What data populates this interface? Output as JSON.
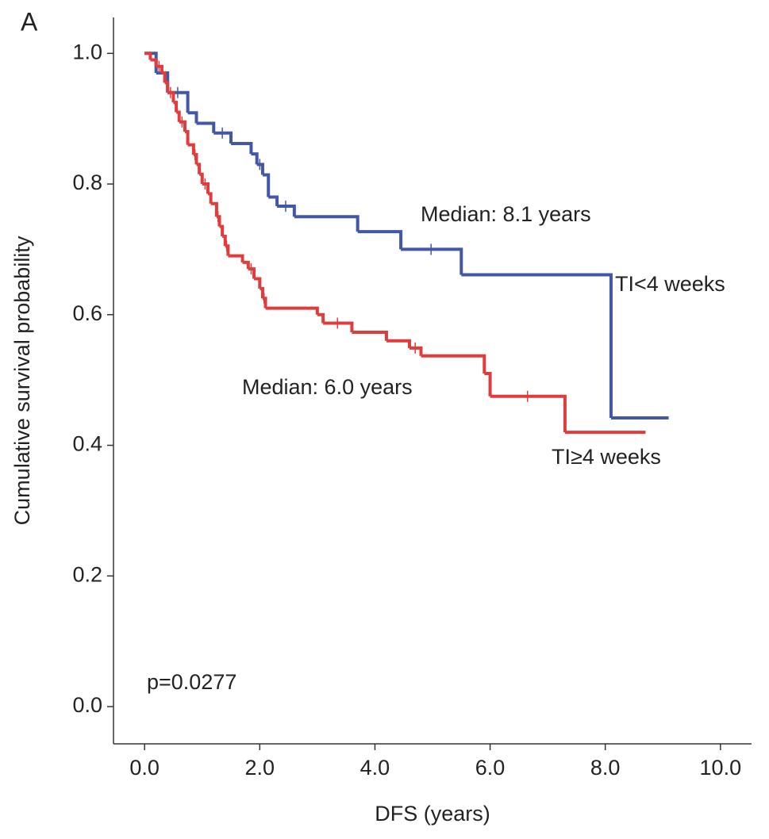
{
  "chart_data": {
    "type": "step",
    "panel_label": "A",
    "x_label": "DFS (years)",
    "y_label": "Cumulative survival probability",
    "xlim": [
      -0.54,
      10.54
    ],
    "ylim": [
      -0.057,
      1.055
    ],
    "xticks": [
      {
        "value": 0,
        "label": "0.0"
      },
      {
        "value": 2,
        "label": "2.0"
      },
      {
        "value": 4,
        "label": "4.0"
      },
      {
        "value": 6,
        "label": "6.0"
      },
      {
        "value": 8,
        "label": "8.0"
      },
      {
        "value": 10,
        "label": "10.0"
      }
    ],
    "yticks": [
      {
        "value": 0,
        "label": "0.0"
      },
      0.2,
      0.4,
      0.6,
      0.8,
      {
        "value": 1,
        "label": "1.0"
      }
    ],
    "series": [
      {
        "name": "TI<4 weeks",
        "color": "#4257a8",
        "median_label": "Median: 8.1 years",
        "x": [
          0,
          0.2,
          0.4,
          0.75,
          0.9,
          1.2,
          1.5,
          1.85,
          1.95,
          2.05,
          2.15,
          2.3,
          2.6,
          3.7,
          4.45,
          5.5,
          8.1,
          9.1
        ],
        "values": [
          1.0,
          0.97,
          0.94,
          0.909,
          0.893,
          0.878,
          0.862,
          0.846,
          0.83,
          0.814,
          0.78,
          0.766,
          0.75,
          0.727,
          0.7,
          0.661,
          0.442,
          0.442
        ]
      },
      {
        "name": "TI≥4 weeks",
        "color": "#e03c3c",
        "median_label": "Median: 6.0 years",
        "x": [
          0,
          0.1,
          0.2,
          0.3,
          0.35,
          0.4,
          0.5,
          0.55,
          0.6,
          0.7,
          0.75,
          0.85,
          0.9,
          0.95,
          1.0,
          1.1,
          1.15,
          1.25,
          1.3,
          1.35,
          1.4,
          1.45,
          1.7,
          1.8,
          1.9,
          2.0,
          2.05,
          2.1,
          3.0,
          3.1,
          3.6,
          4.2,
          4.6,
          4.8,
          5.9,
          6.0,
          7.3,
          8.7
        ],
        "values": [
          1.0,
          0.99,
          0.98,
          0.97,
          0.955,
          0.94,
          0.925,
          0.91,
          0.895,
          0.88,
          0.86,
          0.845,
          0.83,
          0.815,
          0.8,
          0.785,
          0.77,
          0.75,
          0.735,
          0.72,
          0.705,
          0.69,
          0.68,
          0.67,
          0.655,
          0.64,
          0.625,
          0.61,
          0.6,
          0.587,
          0.573,
          0.56,
          0.549,
          0.537,
          0.51,
          0.475,
          0.42,
          0.42
        ]
      }
    ],
    "annotation": "p=0.0277"
  }
}
